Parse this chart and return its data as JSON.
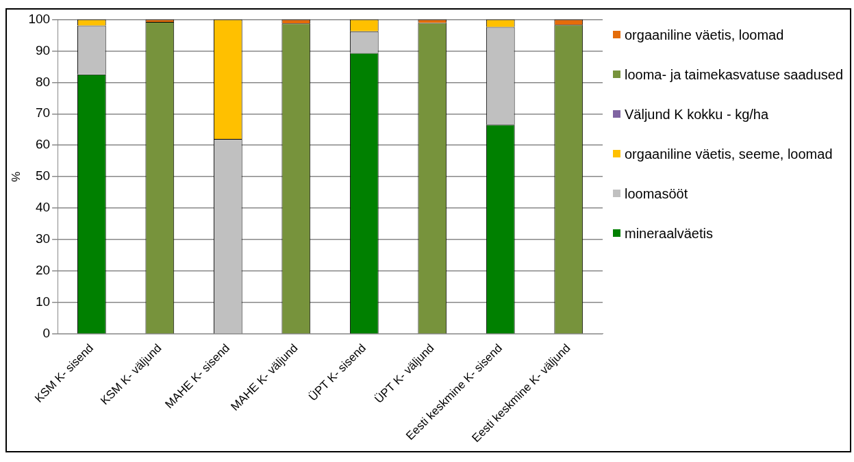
{
  "chart_data": {
    "type": "bar",
    "stacked": true,
    "ylabel": "%",
    "categories": [
      "KSM K- sisend",
      "KSM K- väljund",
      "MAHE K- sisend",
      "MAHE K- väljund",
      "ÜPT K- sisend",
      "ÜPT K- väljund",
      "Eesti keskmine K- sisend",
      "Eesti keskmine K- väljund"
    ],
    "series": [
      {
        "name": "mineraalväetis",
        "color": "#008000",
        "values": [
          82.5,
          0,
          0,
          0,
          89.3,
          0,
          66.5,
          0
        ]
      },
      {
        "name": "loomasööt",
        "color": "#c0c0c0",
        "values": [
          15.5,
          0,
          62,
          0,
          6.9,
          0,
          31.1,
          0
        ]
      },
      {
        "name": "orgaaniline väetis, seeme, loomad",
        "color": "#ffc000",
        "values": [
          2,
          0,
          38,
          0,
          3.8,
          0,
          2.4,
          0
        ]
      },
      {
        "name": "Väljund K kokku - kg/ha",
        "color": "#8064a2",
        "values": [
          null,
          null,
          null,
          null,
          null,
          null,
          null,
          null
        ]
      },
      {
        "name": "looma- ja taimekasvatuse saadused",
        "color": "#77933c",
        "values": [
          0,
          99.2,
          0,
          98.7,
          0,
          98.9,
          0,
          98.3
        ]
      },
      {
        "name": "orgaaniline väetis, loomad",
        "color": "#e46c0a",
        "values": [
          0,
          0.8,
          0,
          1.3,
          0,
          1.1,
          0,
          1.7
        ]
      }
    ],
    "ylim": [
      0,
      100
    ],
    "yticks": [
      0,
      10,
      20,
      30,
      40,
      50,
      60,
      70,
      80,
      90,
      100
    ],
    "grid": "y",
    "legend": "right"
  }
}
